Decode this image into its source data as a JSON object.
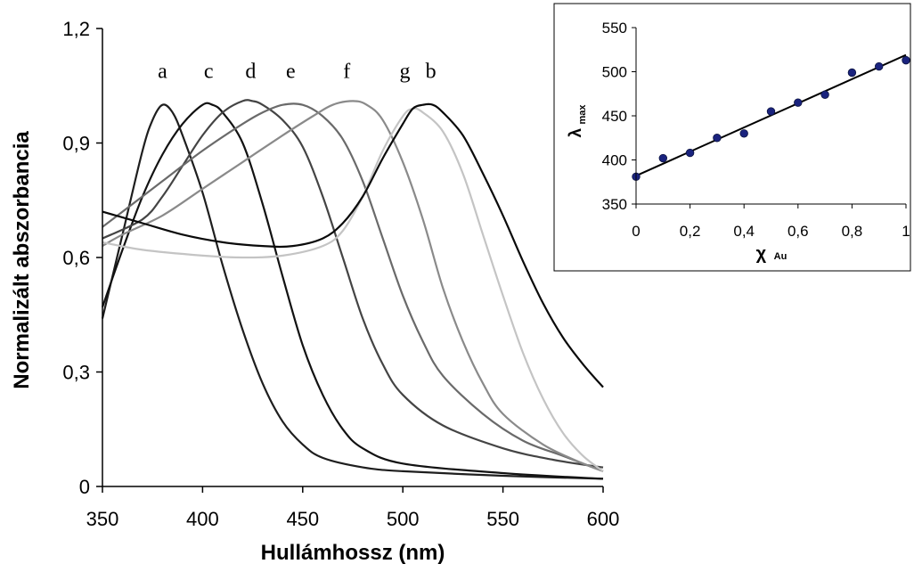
{
  "chart_data": [
    {
      "type": "line",
      "title": "",
      "xlabel": "Hullámhossz (nm)",
      "ylabel": "Normalizált abszorbancia",
      "xlim": [
        350,
        600
      ],
      "ylim": [
        0,
        1.2
      ],
      "x_ticks": [
        "350",
        "400",
        "450",
        "500",
        "550",
        "600"
      ],
      "y_ticks": [
        "0",
        "0,3",
        "0,6",
        "0,9",
        "1,2"
      ],
      "grid": false,
      "series": [
        {
          "name": "a",
          "color": "#1e1e1e",
          "label_at": [
            380,
            1.07
          ],
          "points": [
            [
              350,
              0.44
            ],
            [
              360,
              0.66
            ],
            [
              370,
              0.88
            ],
            [
              375,
              0.96
            ],
            [
              380,
              1.0
            ],
            [
              385,
              0.98
            ],
            [
              390,
              0.92
            ],
            [
              400,
              0.77
            ],
            [
              410,
              0.58
            ],
            [
              420,
              0.41
            ],
            [
              430,
              0.27
            ],
            [
              440,
              0.17
            ],
            [
              450,
              0.11
            ],
            [
              460,
              0.075
            ],
            [
              480,
              0.05
            ],
            [
              500,
              0.04
            ],
            [
              550,
              0.028
            ],
            [
              600,
              0.02
            ]
          ]
        },
        {
          "name": "c",
          "color": "#121212",
          "label_at": [
            403,
            1.07
          ],
          "points": [
            [
              350,
              0.47
            ],
            [
              360,
              0.62
            ],
            [
              370,
              0.76
            ],
            [
              380,
              0.87
            ],
            [
              390,
              0.95
            ],
            [
              400,
              1.0
            ],
            [
              405,
              1.0
            ],
            [
              410,
              0.98
            ],
            [
              420,
              0.9
            ],
            [
              430,
              0.74
            ],
            [
              440,
              0.55
            ],
            [
              450,
              0.37
            ],
            [
              460,
              0.24
            ],
            [
              470,
              0.15
            ],
            [
              480,
              0.1
            ],
            [
              500,
              0.06
            ],
            [
              550,
              0.035
            ],
            [
              600,
              0.02
            ]
          ]
        },
        {
          "name": "d",
          "color": "#444444",
          "label_at": [
            424,
            1.07
          ],
          "points": [
            [
              350,
              0.65
            ],
            [
              370,
              0.7
            ],
            [
              380,
              0.76
            ],
            [
              390,
              0.84
            ],
            [
              400,
              0.92
            ],
            [
              410,
              0.98
            ],
            [
              420,
              1.01
            ],
            [
              425,
              1.01
            ],
            [
              430,
              1.0
            ],
            [
              440,
              0.96
            ],
            [
              450,
              0.89
            ],
            [
              460,
              0.76
            ],
            [
              470,
              0.6
            ],
            [
              480,
              0.44
            ],
            [
              490,
              0.32
            ],
            [
              500,
              0.24
            ],
            [
              520,
              0.16
            ],
            [
              550,
              0.1
            ],
            [
              575,
              0.07
            ],
            [
              600,
              0.05
            ]
          ]
        },
        {
          "name": "e",
          "color": "#6a6a6a",
          "label_at": [
            444,
            1.07
          ],
          "points": [
            [
              350,
              0.68
            ],
            [
              360,
              0.72
            ],
            [
              380,
              0.8
            ],
            [
              400,
              0.88
            ],
            [
              420,
              0.95
            ],
            [
              430,
              0.98
            ],
            [
              440,
              1.0
            ],
            [
              450,
              1.0
            ],
            [
              460,
              0.97
            ],
            [
              470,
              0.91
            ],
            [
              480,
              0.8
            ],
            [
              490,
              0.65
            ],
            [
              500,
              0.5
            ],
            [
              510,
              0.38
            ],
            [
              520,
              0.29
            ],
            [
              540,
              0.19
            ],
            [
              560,
              0.12
            ],
            [
              580,
              0.08
            ],
            [
              600,
              0.04
            ]
          ]
        },
        {
          "name": "f",
          "color": "#8a8a8a",
          "label_at": [
            472,
            1.07
          ],
          "points": [
            [
              350,
              0.63
            ],
            [
              360,
              0.66
            ],
            [
              380,
              0.71
            ],
            [
              400,
              0.78
            ],
            [
              420,
              0.85
            ],
            [
              440,
              0.92
            ],
            [
              455,
              0.97
            ],
            [
              465,
              1.0
            ],
            [
              475,
              1.01
            ],
            [
              482,
              1.0
            ],
            [
              490,
              0.96
            ],
            [
              500,
              0.85
            ],
            [
              510,
              0.7
            ],
            [
              520,
              0.52
            ],
            [
              530,
              0.38
            ],
            [
              540,
              0.27
            ],
            [
              550,
              0.19
            ],
            [
              570,
              0.11
            ],
            [
              590,
              0.06
            ],
            [
              600,
              0.04
            ]
          ]
        },
        {
          "name": "g",
          "color": "#c4c4c4",
          "label_at": [
            501,
            1.07
          ],
          "points": [
            [
              350,
              0.64
            ],
            [
              370,
              0.62
            ],
            [
              400,
              0.605
            ],
            [
              420,
              0.6
            ],
            [
              440,
              0.605
            ],
            [
              460,
              0.63
            ],
            [
              470,
              0.67
            ],
            [
              480,
              0.76
            ],
            [
              490,
              0.88
            ],
            [
              500,
              0.97
            ],
            [
              505,
              0.99
            ],
            [
              510,
              0.98
            ],
            [
              520,
              0.93
            ],
            [
              530,
              0.82
            ],
            [
              540,
              0.66
            ],
            [
              550,
              0.5
            ],
            [
              560,
              0.35
            ],
            [
              570,
              0.23
            ],
            [
              580,
              0.14
            ],
            [
              590,
              0.08
            ],
            [
              600,
              0.04
            ]
          ]
        },
        {
          "name": "b",
          "color": "#0a0a0a",
          "label_at": [
            514,
            1.07
          ],
          "points": [
            [
              350,
              0.72
            ],
            [
              370,
              0.69
            ],
            [
              390,
              0.66
            ],
            [
              410,
              0.64
            ],
            [
              430,
              0.63
            ],
            [
              445,
              0.63
            ],
            [
              460,
              0.65
            ],
            [
              470,
              0.69
            ],
            [
              480,
              0.76
            ],
            [
              490,
              0.86
            ],
            [
              500,
              0.95
            ],
            [
              505,
              0.99
            ],
            [
              510,
              1.0
            ],
            [
              515,
              1.0
            ],
            [
              520,
              0.98
            ],
            [
              530,
              0.92
            ],
            [
              540,
              0.82
            ],
            [
              550,
              0.71
            ],
            [
              560,
              0.59
            ],
            [
              570,
              0.48
            ],
            [
              580,
              0.39
            ],
            [
              590,
              0.32
            ],
            [
              600,
              0.26
            ]
          ]
        }
      ]
    },
    {
      "type": "scatter",
      "title": "",
      "xlabel": "χ",
      "xlabel_sub": "Au",
      "ylabel": "λ",
      "ylabel_sub": "max",
      "xlim": [
        0,
        1
      ],
      "ylim": [
        350,
        550
      ],
      "x_ticks": [
        "0",
        "0,2",
        "0,4",
        "0,6",
        "0,8",
        "1"
      ],
      "y_ticks": [
        "350",
        "400",
        "450",
        "500",
        "550"
      ],
      "marker_color": "#1a237e",
      "points": [
        [
          0,
          381
        ],
        [
          0.1,
          402
        ],
        [
          0.2,
          408
        ],
        [
          0.3,
          425
        ],
        [
          0.4,
          430
        ],
        [
          0.5,
          455
        ],
        [
          0.6,
          465
        ],
        [
          0.7,
          474
        ],
        [
          0.8,
          499
        ],
        [
          0.9,
          506
        ],
        [
          1.0,
          513
        ]
      ],
      "trendline": [
        [
          0,
          382
        ],
        [
          1,
          519
        ]
      ]
    }
  ]
}
